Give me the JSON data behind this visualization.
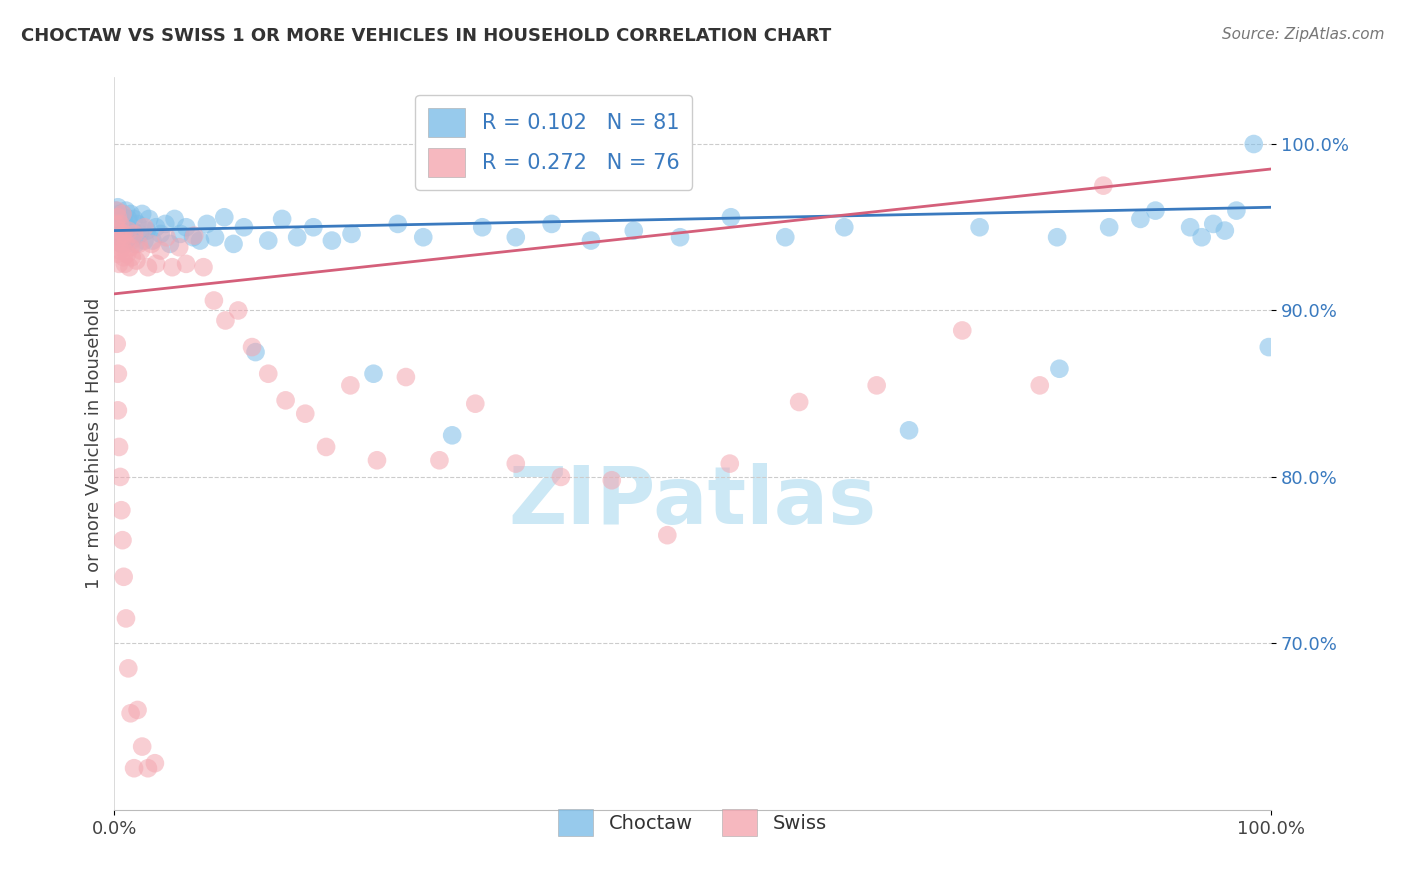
{
  "title": "CHOCTAW VS SWISS 1 OR MORE VEHICLES IN HOUSEHOLD CORRELATION CHART",
  "source": "Source: ZipAtlas.com",
  "ylabel": "1 or more Vehicles in Household",
  "xlim": [
    0.0,
    1.0
  ],
  "ylim": [
    0.6,
    1.04
  ],
  "y_ticks": [
    0.7,
    0.8,
    0.9,
    1.0
  ],
  "y_tick_labels": [
    "70.0%",
    "80.0%",
    "90.0%",
    "100.0%"
  ],
  "x_tick_labels": [
    "0.0%",
    "100.0%"
  ],
  "choctaw_color": "#7dbde8",
  "swiss_color": "#f4a6b0",
  "choctaw_line_color": "#3a7abf",
  "swiss_line_color": "#d45f7a",
  "choctaw_R": 0.102,
  "choctaw_N": 81,
  "swiss_R": 0.272,
  "swiss_N": 76,
  "legend_R_color": "#3a7abf",
  "watermark_color": "#cce8f5",
  "choctaw_scatter_x": [
    0.001,
    0.002,
    0.002,
    0.003,
    0.003,
    0.004,
    0.004,
    0.005,
    0.005,
    0.006,
    0.006,
    0.007,
    0.007,
    0.008,
    0.008,
    0.009,
    0.01,
    0.01,
    0.011,
    0.012,
    0.013,
    0.014,
    0.015,
    0.016,
    0.017,
    0.018,
    0.02,
    0.022,
    0.024,
    0.026,
    0.028,
    0.03,
    0.033,
    0.036,
    0.04,
    0.044,
    0.048,
    0.052,
    0.057,
    0.062,
    0.068,
    0.074,
    0.08,
    0.087,
    0.095,
    0.103,
    0.112,
    0.122,
    0.133,
    0.145,
    0.158,
    0.172,
    0.188,
    0.205,
    0.224,
    0.245,
    0.267,
    0.292,
    0.318,
    0.347,
    0.378,
    0.412,
    0.449,
    0.489,
    0.533,
    0.58,
    0.631,
    0.687,
    0.748,
    0.815,
    0.817,
    0.86,
    0.887,
    0.9,
    0.93,
    0.94,
    0.95,
    0.96,
    0.97,
    0.985,
    0.998
  ],
  "choctaw_scatter_y": [
    0.96,
    0.955,
    0.948,
    0.962,
    0.95,
    0.944,
    0.958,
    0.946,
    0.954,
    0.94,
    0.952,
    0.945,
    0.958,
    0.942,
    0.956,
    0.948,
    0.96,
    0.942,
    0.95,
    0.955,
    0.944,
    0.958,
    0.942,
    0.948,
    0.955,
    0.94,
    0.952,
    0.946,
    0.958,
    0.942,
    0.948,
    0.955,
    0.942,
    0.95,
    0.946,
    0.952,
    0.94,
    0.955,
    0.946,
    0.95,
    0.944,
    0.942,
    0.952,
    0.944,
    0.956,
    0.94,
    0.95,
    0.875,
    0.942,
    0.955,
    0.944,
    0.95,
    0.942,
    0.946,
    0.862,
    0.952,
    0.944,
    0.825,
    0.95,
    0.944,
    0.952,
    0.942,
    0.948,
    0.944,
    0.956,
    0.944,
    0.95,
    0.828,
    0.95,
    0.944,
    0.865,
    0.95,
    0.955,
    0.96,
    0.95,
    0.944,
    0.952,
    0.948,
    0.96,
    1.0,
    0.878
  ],
  "swiss_scatter_x": [
    0.001,
    0.002,
    0.002,
    0.003,
    0.003,
    0.004,
    0.004,
    0.005,
    0.005,
    0.006,
    0.006,
    0.007,
    0.007,
    0.008,
    0.008,
    0.009,
    0.01,
    0.011,
    0.012,
    0.013,
    0.014,
    0.015,
    0.017,
    0.019,
    0.021,
    0.023,
    0.026,
    0.029,
    0.032,
    0.036,
    0.04,
    0.045,
    0.05,
    0.056,
    0.062,
    0.069,
    0.077,
    0.086,
    0.096,
    0.107,
    0.119,
    0.133,
    0.148,
    0.165,
    0.183,
    0.204,
    0.227,
    0.252,
    0.281,
    0.312,
    0.347,
    0.386,
    0.43,
    0.478,
    0.532,
    0.592,
    0.659,
    0.733,
    0.8,
    0.855,
    0.002,
    0.003,
    0.003,
    0.004,
    0.005,
    0.006,
    0.007,
    0.008,
    0.01,
    0.012,
    0.014,
    0.017,
    0.02,
    0.024,
    0.029,
    0.035
  ],
  "swiss_scatter_y": [
    0.952,
    0.942,
    0.96,
    0.934,
    0.956,
    0.928,
    0.948,
    0.936,
    0.952,
    0.94,
    0.938,
    0.944,
    0.958,
    0.932,
    0.946,
    0.928,
    0.94,
    0.934,
    0.948,
    0.926,
    0.938,
    0.932,
    0.946,
    0.93,
    0.94,
    0.936,
    0.95,
    0.926,
    0.94,
    0.928,
    0.936,
    0.944,
    0.926,
    0.938,
    0.928,
    0.945,
    0.926,
    0.906,
    0.894,
    0.9,
    0.878,
    0.862,
    0.846,
    0.838,
    0.818,
    0.855,
    0.81,
    0.86,
    0.81,
    0.844,
    0.808,
    0.8,
    0.798,
    0.765,
    0.808,
    0.845,
    0.855,
    0.888,
    0.855,
    0.975,
    0.88,
    0.862,
    0.84,
    0.818,
    0.8,
    0.78,
    0.762,
    0.74,
    0.715,
    0.685,
    0.658,
    0.625,
    0.66,
    0.638,
    0.625,
    0.628
  ]
}
